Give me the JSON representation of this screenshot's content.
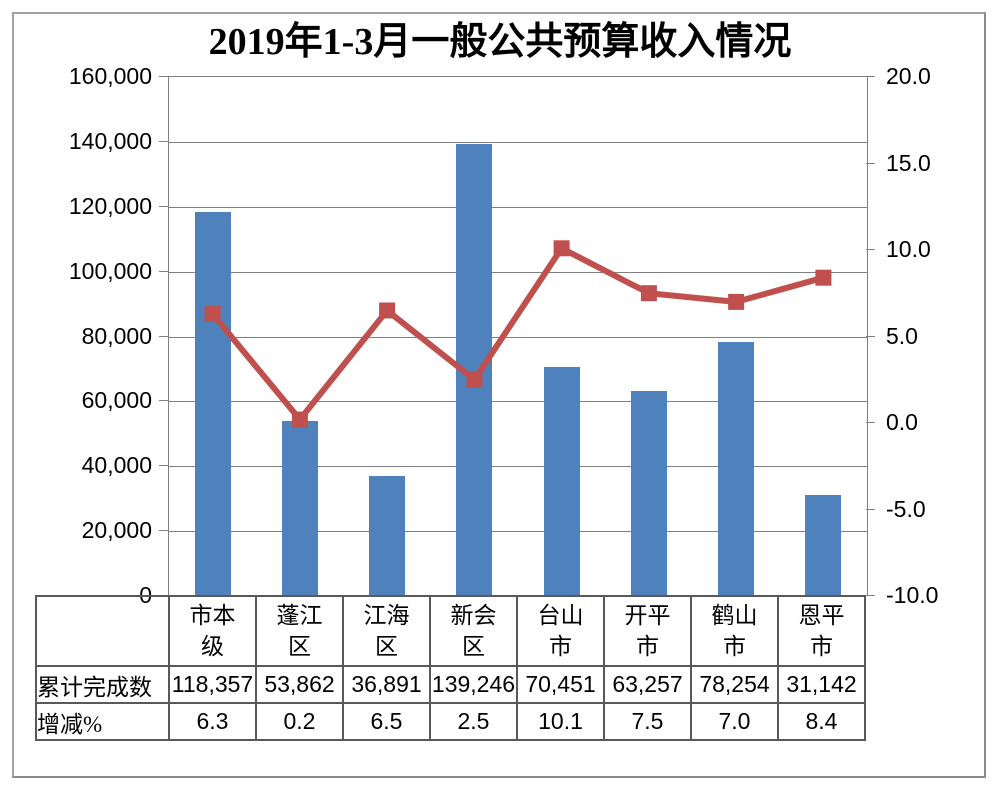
{
  "title": "2019年1-3月一般公共预算收入情况",
  "chart_data": {
    "type": "combo",
    "title": "2019年1-3月一般公共预算收入情况",
    "categories": [
      "市本级",
      "蓬江区",
      "江海区",
      "新会区",
      "台山市",
      "开平市",
      "鹤山市",
      "恩平市"
    ],
    "series": [
      {
        "name": "累计完成数",
        "type": "bar",
        "axis": "left",
        "color": "#4F81BD",
        "values": [
          118357,
          53862,
          36891,
          139246,
          70451,
          63257,
          78254,
          31142
        ]
      },
      {
        "name": "增减%",
        "type": "line",
        "axis": "right",
        "color": "#C0504D",
        "values": [
          6.3,
          0.2,
          6.5,
          2.5,
          10.1,
          7.5,
          7.0,
          8.4
        ]
      }
    ],
    "left_axis": {
      "min": 0,
      "max": 160000,
      "step": 20000,
      "tick_labels": [
        "0",
        "20,000",
        "40,000",
        "60,000",
        "80,000",
        "100,000",
        "120,000",
        "140,000",
        "160,000"
      ]
    },
    "right_axis": {
      "min": -10.0,
      "max": 20.0,
      "step": 5.0,
      "tick_labels": [
        "-10.0",
        "-5.0",
        "0.0",
        "5.0",
        "10.0",
        "15.0",
        "20.0"
      ]
    },
    "grid": true,
    "legend_position": "none",
    "data_table": {
      "row_labels": [
        "累计完成数",
        "增减%"
      ],
      "rows": [
        [
          "118,357",
          "53,862",
          "36,891",
          "139,246",
          "70,451",
          "63,257",
          "78,254",
          "31,142"
        ],
        [
          "6.3",
          "0.2",
          "6.5",
          "2.5",
          "10.1",
          "7.5",
          "7.0",
          "8.4"
        ]
      ]
    },
    "colors": {
      "bar": "#4F81BD",
      "line": "#C0504D",
      "gridline": "#7F7F7F",
      "table_border": "#595959"
    }
  }
}
